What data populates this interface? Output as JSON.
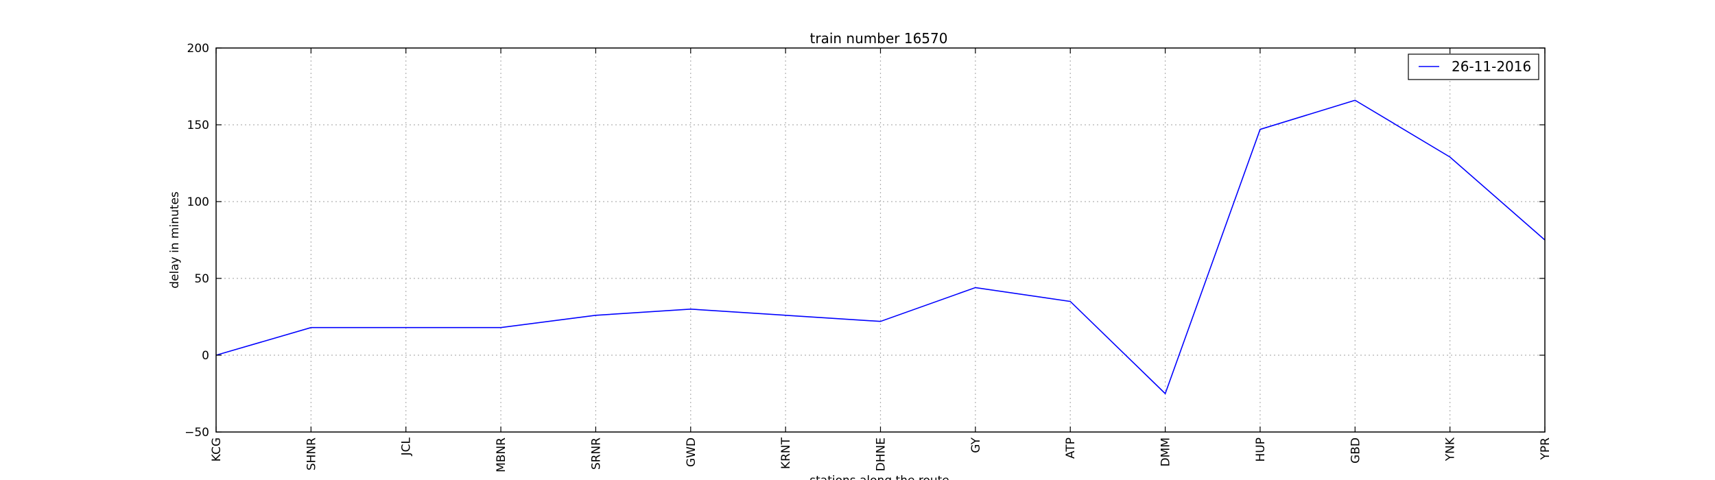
{
  "chart_data": {
    "type": "line",
    "title": "train number 16570",
    "xlabel": "stations along the route",
    "ylabel": "delay in minutes",
    "categories": [
      "KCG",
      "SHNR",
      "JCL",
      "MBNR",
      "SRNR",
      "GWD",
      "KRNT",
      "DHNE",
      "GY",
      "ATP",
      "DMM",
      "HUP",
      "GBD",
      "YNK",
      "YPR"
    ],
    "series": [
      {
        "name": "26-11-2016",
        "color": "#0000ff",
        "values": [
          0,
          18,
          18,
          18,
          26,
          30,
          26,
          22,
          44,
          35,
          -25,
          147,
          166,
          129,
          75
        ]
      }
    ],
    "ylim": [
      -50,
      200
    ],
    "yticks": [
      -50,
      0,
      50,
      100,
      150,
      200
    ],
    "grid": true,
    "legend_position": "top-right"
  }
}
